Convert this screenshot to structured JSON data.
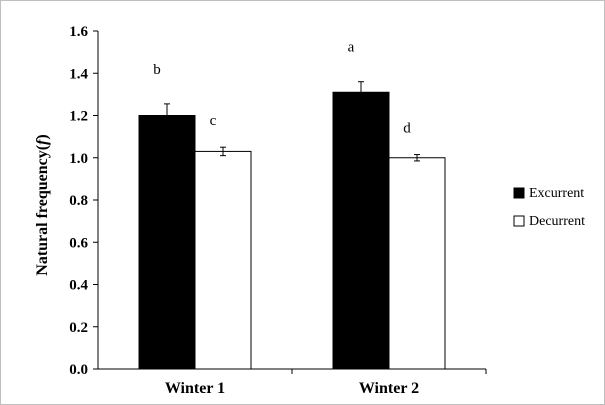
{
  "chart_data": {
    "type": "bar",
    "categories": [
      "Winter 1",
      "Winter 2"
    ],
    "series": [
      {
        "name": "Excurrent",
        "color": "#000000",
        "values": [
          1.2,
          1.31
        ],
        "errors": [
          0.055,
          0.05
        ],
        "letters": [
          "b",
          "a"
        ]
      },
      {
        "name": "Decurrent",
        "color": "#ffffff",
        "values": [
          1.03,
          1.0
        ],
        "errors": [
          0.02,
          0.015
        ],
        "letters": [
          "c",
          "d"
        ]
      }
    ],
    "title": "",
    "xlabel": "",
    "ylabel_prefix": "Natural frequency(",
    "ylabel_italic": "f",
    "ylabel_suffix": ")",
    "ylim": [
      0,
      1.6
    ],
    "yticks": [
      "0.0",
      "0.2",
      "0.4",
      "0.6",
      "0.8",
      "1.0",
      "1.2",
      "1.4",
      "1.6"
    ],
    "grid": false,
    "legend_position": "right"
  }
}
